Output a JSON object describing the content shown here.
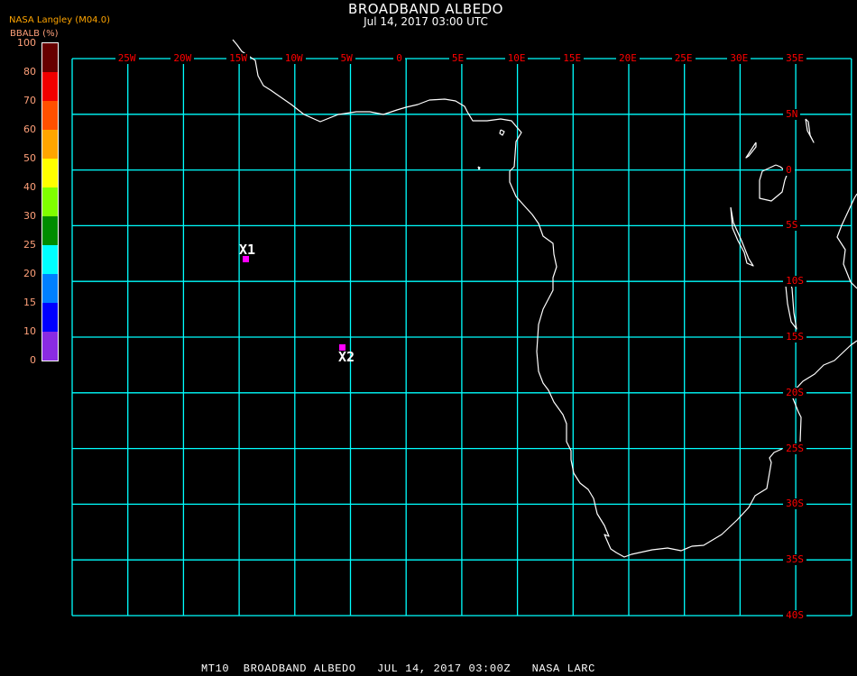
{
  "header": {
    "title": "BROADBAND ALBEDO",
    "subtitle": "Jul 14, 2017 03:00 UTC"
  },
  "legend": {
    "source": "NASA Langley (M04.0)",
    "unit_label": "BBALB (%)",
    "source_color": "#ffa500",
    "tick_color": "#ffa07a",
    "ticks": [
      "100",
      "80",
      "70",
      "60",
      "50",
      "40",
      "30",
      "25",
      "20",
      "15",
      "10",
      "0"
    ],
    "colors": [
      "#660000",
      "#f00000",
      "#ff5000",
      "#ffa500",
      "#ffff00",
      "#80ff00",
      "#008c00",
      "#00ffff",
      "#0080ff",
      "#0000ff",
      "#8a2be2"
    ]
  },
  "map": {
    "grid_color": "#00ffff",
    "label_color": "#ff0000",
    "coastline_color": "#ffffff",
    "lon_labels": [
      "25W",
      "20W",
      "15W",
      "10W",
      "5W",
      "0",
      "5E",
      "10E",
      "15E",
      "20E",
      "25E",
      "30E",
      "35E"
    ],
    "lat_labels": [
      "5N",
      "0",
      "5S",
      "10S",
      "15S",
      "20S",
      "25S",
      "30S",
      "35S",
      "40S"
    ],
    "markers": [
      {
        "label": "X1",
        "color": "#ff00ff"
      },
      {
        "label": "X2",
        "color": "#ff00ff"
      }
    ]
  },
  "footer": {
    "text": "MT10  BROADBAND ALBEDO   JUL 14, 2017 03:00Z   NASA LARC"
  }
}
